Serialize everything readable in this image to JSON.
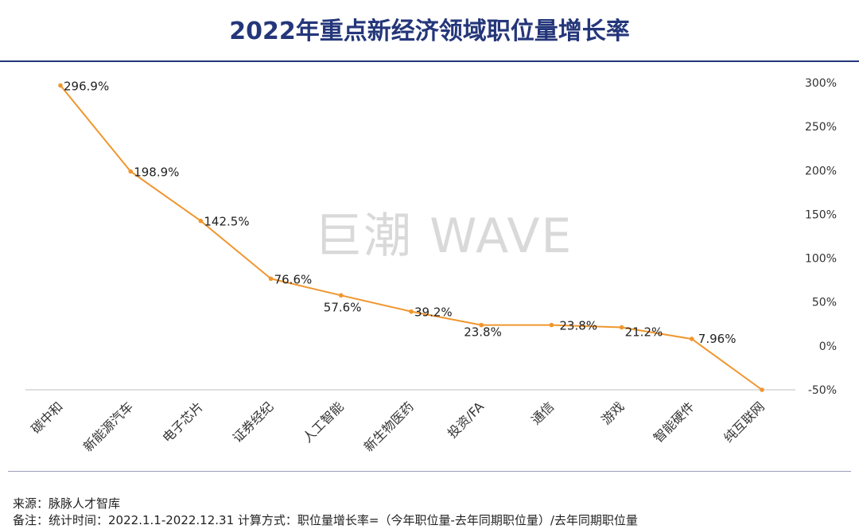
{
  "title": "2022年重点新经济领域职位量增长率",
  "watermark": "巨潮 WAVE",
  "footer": {
    "source_label": "来源：",
    "source_text": "脉脉人才智库",
    "note_label": "备注：",
    "note_text": "统计时间：2022.1.1-2022.12.31 计算方式：职位量增长率=（今年职位量-去年同期职位量）/去年同期职位量"
  },
  "colors": {
    "line": "#f0962e",
    "title": "#24367a"
  },
  "chart_data": {
    "type": "line",
    "title": "2022年重点新经济领域职位量增长率",
    "categories": [
      "碳中和",
      "新能源汽车",
      "电子芯片",
      "证券经纪",
      "人工智能",
      "新生物医药",
      "投资/FA",
      "通信",
      "游戏",
      "智能硬件",
      "纯互联网"
    ],
    "series": [
      {
        "values": [
          296.9,
          198.9,
          142.5,
          76.6,
          57.6,
          39.2,
          23.8,
          23.8,
          21.2,
          7.96,
          -50
        ]
      }
    ],
    "data_labels": [
      "296.9%",
      "198.9%",
      "142.5%",
      "76.6%",
      "57.6%",
      "39.2%",
      "23.8%",
      "23.8%",
      "21.2%",
      "7.96%",
      ""
    ],
    "y_ticks": [
      300,
      250,
      200,
      150,
      100,
      50,
      0,
      -50
    ],
    "y_tick_labels": [
      "300%",
      "250%",
      "200%",
      "150%",
      "100%",
      "50%",
      "0%",
      "-50%"
    ],
    "ylim": [
      -50,
      300
    ],
    "y_axis_position": "right",
    "grid": false,
    "legend": "none"
  }
}
